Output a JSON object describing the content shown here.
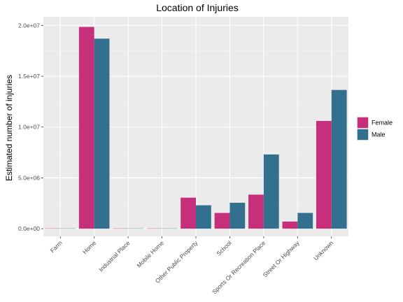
{
  "chart_data": {
    "type": "bar",
    "title": "Location of Injuries",
    "xlabel": "",
    "ylabel": "Estimated number of injuries",
    "categories": [
      "Farm",
      "Home",
      "Industrial Place",
      "Mobile Home",
      "Other Public Property",
      "School",
      "Sports Or Recreation Place",
      "Street Or Highway",
      "Unknown"
    ],
    "series": [
      {
        "name": "Female",
        "color": "#c6307b",
        "values": [
          30000,
          19850000,
          15000,
          20000,
          3050000,
          1550000,
          3350000,
          700000,
          10600000
        ]
      },
      {
        "name": "Male",
        "color": "#33708d",
        "values": [
          20000,
          18700000,
          10000,
          15000,
          2300000,
          2550000,
          7300000,
          1550000,
          13650000
        ]
      }
    ],
    "yticks": [
      0,
      5000000,
      10000000,
      15000000,
      20000000
    ],
    "ytick_labels": [
      "0.0e+00",
      "5.0e+06",
      "1.0e+07",
      "1.5e+07",
      "2.0e+07"
    ],
    "ylim": [
      -750000,
      20850000
    ],
    "grid": true,
    "legend_position": "right"
  }
}
